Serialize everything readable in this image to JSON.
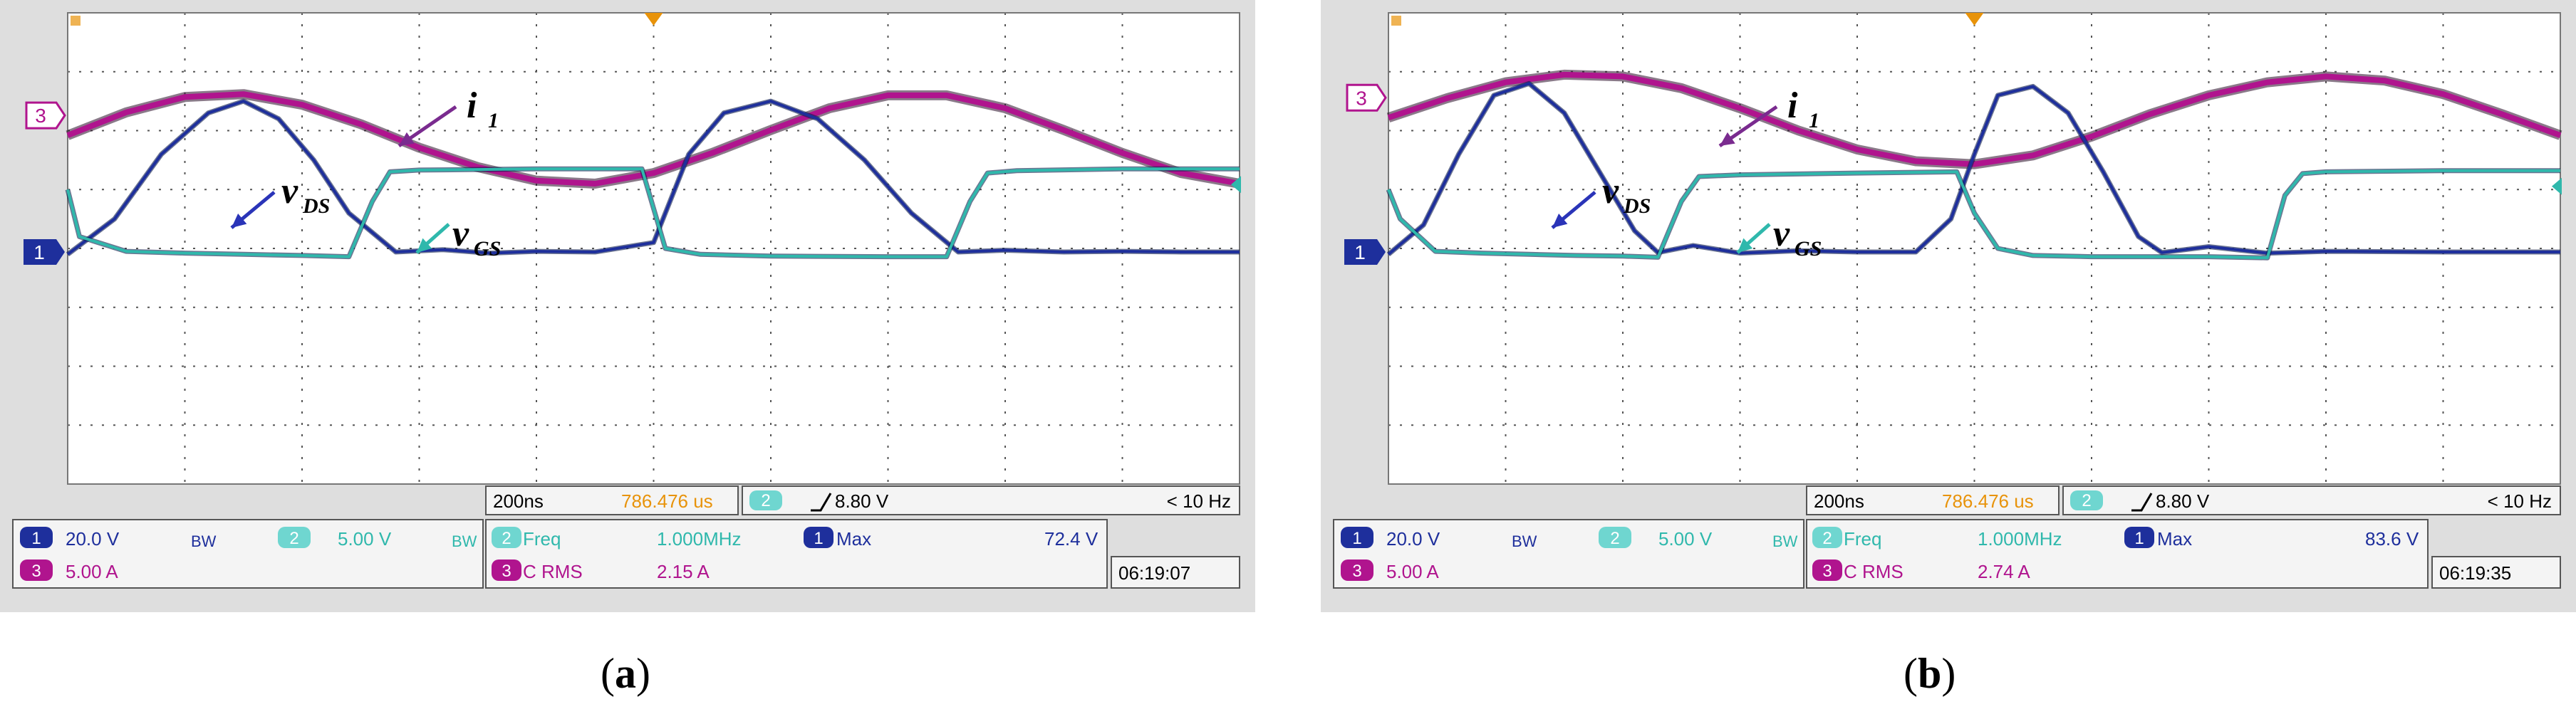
{
  "colors": {
    "ch1": "#1e2f9c",
    "ch2": "#2fb8ac",
    "ch3": "#b0148e",
    "screen_bg": "#ffffff",
    "bezel": "#dedede",
    "grid": "#555555",
    "orange": "#e8930a"
  },
  "panels": [
    {
      "caption_letter": "a",
      "channels": {
        "ch1_marker": "1",
        "ch3_marker": "3"
      },
      "trace_labels": {
        "i1_main": "i",
        "i1_sub": "1",
        "vds_main": "v",
        "vds_sub": "DS",
        "vgs_main": "v",
        "vgs_sub": "GS"
      },
      "timebase": {
        "time_div": "200ns",
        "position": "786.476 us",
        "trig_ch": "2",
        "trig_level": "8.80 V",
        "trig_freq": "< 10 Hz"
      },
      "scales": {
        "ch1_num": "1",
        "ch1_scale": "20.0 V",
        "ch1_bw": "BW",
        "ch2_num": "2",
        "ch2_scale": "5.00 V",
        "ch2_bw": "BW",
        "ch3_num": "3",
        "ch3_scale": "5.00 A"
      },
      "measurements": {
        "m1_ch": "2",
        "m1_label": "Freq",
        "m1_value": "1.000MHz",
        "m2_ch": "1",
        "m2_label": "Max",
        "m2_value": "72.4 V",
        "m3_ch": "3",
        "m3_label": "C RMS",
        "m3_value": "2.15 A"
      },
      "clock": "06:19:07"
    },
    {
      "caption_letter": "b",
      "channels": {
        "ch1_marker": "1",
        "ch3_marker": "3"
      },
      "trace_labels": {
        "i1_main": "i",
        "i1_sub": "1",
        "vds_main": "v",
        "vds_sub": "DS",
        "vgs_main": "v",
        "vgs_sub": "GS"
      },
      "timebase": {
        "time_div": "200ns",
        "position": "786.476 us",
        "trig_ch": "2",
        "trig_level": "8.80 V",
        "trig_freq": "< 10 Hz"
      },
      "scales": {
        "ch1_num": "1",
        "ch1_scale": "20.0 V",
        "ch1_bw": "BW",
        "ch2_num": "2",
        "ch2_scale": "5.00 V",
        "ch2_bw": "BW",
        "ch3_num": "3",
        "ch3_scale": "5.00 A"
      },
      "measurements": {
        "m1_ch": "2",
        "m1_label": "Freq",
        "m1_value": "1.000MHz",
        "m2_ch": "1",
        "m2_label": "Max",
        "m2_value": "83.6 V",
        "m3_ch": "3",
        "m3_label": "C RMS",
        "m3_value": "2.74 A"
      },
      "clock": "06:19:35"
    }
  ],
  "chart_data": [
    {
      "type": "line",
      "x_unit": "divisions (200 ns/div)",
      "xlim": [
        0,
        10
      ],
      "ylim": [
        -4,
        4
      ],
      "grid": true,
      "series": [
        {
          "name": "i1",
          "channel": 3,
          "x": [
            0,
            0.5,
            1,
            1.5,
            2,
            2.5,
            3,
            3.5,
            4,
            4.5,
            5,
            5.5,
            6,
            6.5,
            7,
            7.5,
            8,
            8.5,
            9,
            9.5,
            10
          ],
          "y": [
            1.92,
            2.31,
            2.57,
            2.62,
            2.44,
            2.11,
            1.71,
            1.38,
            1.15,
            1.1,
            1.28,
            1.62,
            2.01,
            2.38,
            2.6,
            2.6,
            2.38,
            2.01,
            1.62,
            1.28,
            1.1
          ]
        },
        {
          "name": "vDS",
          "channel": 1,
          "x": [
            0,
            0.4,
            0.8,
            1.2,
            1.5,
            1.8,
            2.1,
            2.4,
            2.8,
            3.2,
            3.6,
            4.0,
            4.5,
            5.0,
            5.3,
            5.6,
            6.0,
            6.4,
            6.8,
            7.2,
            7.6,
            8.0,
            8.5,
            9.0,
            9.5,
            10
          ],
          "y": [
            -0.1,
            0.5,
            1.6,
            2.3,
            2.5,
            2.2,
            1.5,
            0.6,
            -0.06,
            -0.02,
            -0.08,
            -0.05,
            -0.06,
            0.1,
            1.6,
            2.3,
            2.5,
            2.2,
            1.5,
            0.6,
            -0.06,
            -0.03,
            -0.06,
            -0.05,
            -0.06,
            -0.06
          ]
        },
        {
          "name": "vGS",
          "channel": 2,
          "x": [
            0,
            0.1,
            0.5,
            1.0,
            1.5,
            2.0,
            2.4,
            2.6,
            2.75,
            3.0,
            4.0,
            4.9,
            5.1,
            5.4,
            6.0,
            7.0,
            7.5,
            7.7,
            7.85,
            8.1,
            9.0,
            10
          ],
          "y": [
            1.0,
            0.2,
            -0.05,
            -0.08,
            -0.1,
            -0.12,
            -0.14,
            0.8,
            1.3,
            1.33,
            1.35,
            1.35,
            0.0,
            -0.1,
            -0.13,
            -0.14,
            -0.14,
            0.8,
            1.28,
            1.32,
            1.35,
            1.35
          ]
        }
      ]
    },
    {
      "type": "line",
      "x_unit": "divisions (200 ns/div)",
      "xlim": [
        0,
        10
      ],
      "ylim": [
        -4,
        4
      ],
      "grid": true,
      "series": [
        {
          "name": "i1",
          "channel": 3,
          "x": [
            0,
            0.5,
            1,
            1.5,
            2,
            2.5,
            3,
            3.5,
            4,
            4.5,
            5,
            5.5,
            6,
            6.5,
            7,
            7.5,
            8,
            8.5,
            9,
            9.5,
            10
          ],
          "y": [
            2.22,
            2.55,
            2.82,
            2.95,
            2.92,
            2.72,
            2.38,
            2.0,
            1.68,
            1.48,
            1.43,
            1.58,
            1.9,
            2.28,
            2.6,
            2.82,
            2.92,
            2.85,
            2.62,
            2.28,
            1.92
          ]
        },
        {
          "name": "vDS",
          "channel": 1,
          "x": [
            0,
            0.3,
            0.6,
            0.9,
            1.2,
            1.5,
            1.8,
            2.1,
            2.3,
            2.6,
            3.0,
            3.5,
            4.0,
            4.5,
            4.8,
            5.0,
            5.2,
            5.5,
            5.8,
            6.1,
            6.4,
            6.6,
            7.0,
            7.5,
            8.0,
            9.0,
            10
          ],
          "y": [
            -0.1,
            0.4,
            1.6,
            2.6,
            2.8,
            2.3,
            1.3,
            0.3,
            -0.07,
            0.05,
            -0.08,
            -0.04,
            -0.06,
            -0.06,
            0.5,
            1.6,
            2.6,
            2.75,
            2.3,
            1.3,
            0.2,
            -0.07,
            0.03,
            -0.08,
            -0.05,
            -0.06,
            -0.06
          ]
        },
        {
          "name": "vGS",
          "channel": 2,
          "x": [
            0,
            0.1,
            0.4,
            0.8,
            1.2,
            1.6,
            2.0,
            2.3,
            2.5,
            2.65,
            3.0,
            4.0,
            4.85,
            5.0,
            5.2,
            5.5,
            6.0,
            7.0,
            7.5,
            7.65,
            7.8,
            8.0,
            9.0,
            10
          ],
          "y": [
            1.0,
            0.5,
            -0.05,
            -0.08,
            -0.1,
            -0.12,
            -0.13,
            -0.15,
            0.8,
            1.22,
            1.25,
            1.28,
            1.3,
            0.6,
            0.0,
            -0.12,
            -0.14,
            -0.14,
            -0.16,
            0.9,
            1.27,
            1.3,
            1.32,
            1.32
          ]
        }
      ]
    }
  ]
}
